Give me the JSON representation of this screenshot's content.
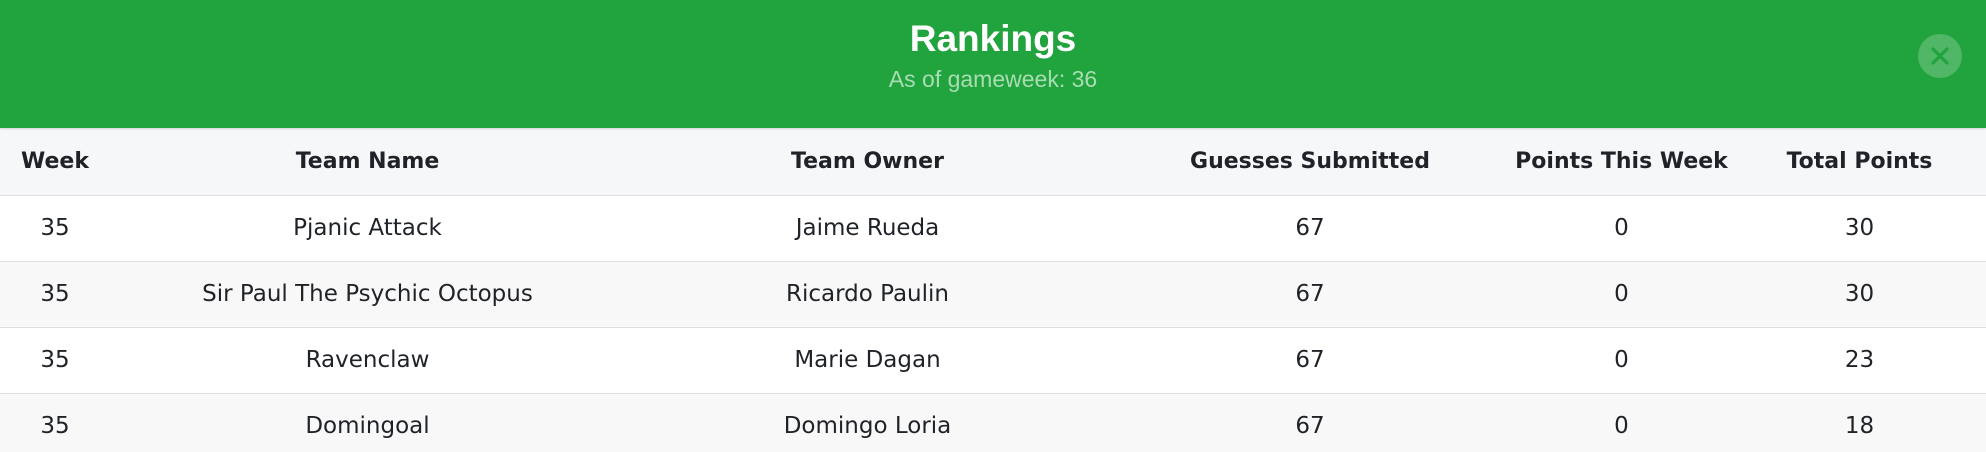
{
  "header": {
    "title": "Rankings",
    "subtitle": "As of gameweek: 36",
    "background_color": "#21a33d",
    "close_icon": "close-icon"
  },
  "table": {
    "columns": [
      "Week",
      "Team Name",
      "Team Owner",
      "Guesses Submitted",
      "Points This Week",
      "Total Points"
    ],
    "rows": [
      [
        "35",
        "Pjanic Attack",
        "Jaime Rueda",
        "67",
        "0",
        "30"
      ],
      [
        "35",
        "Sir Paul The Psychic Octopus",
        "Ricardo Paulin",
        "67",
        "0",
        "30"
      ],
      [
        "35",
        "Ravenclaw",
        "Marie Dagan",
        "67",
        "0",
        "23"
      ],
      [
        "35",
        "Domingoal",
        "Domingo Loria",
        "67",
        "0",
        "18"
      ]
    ]
  }
}
